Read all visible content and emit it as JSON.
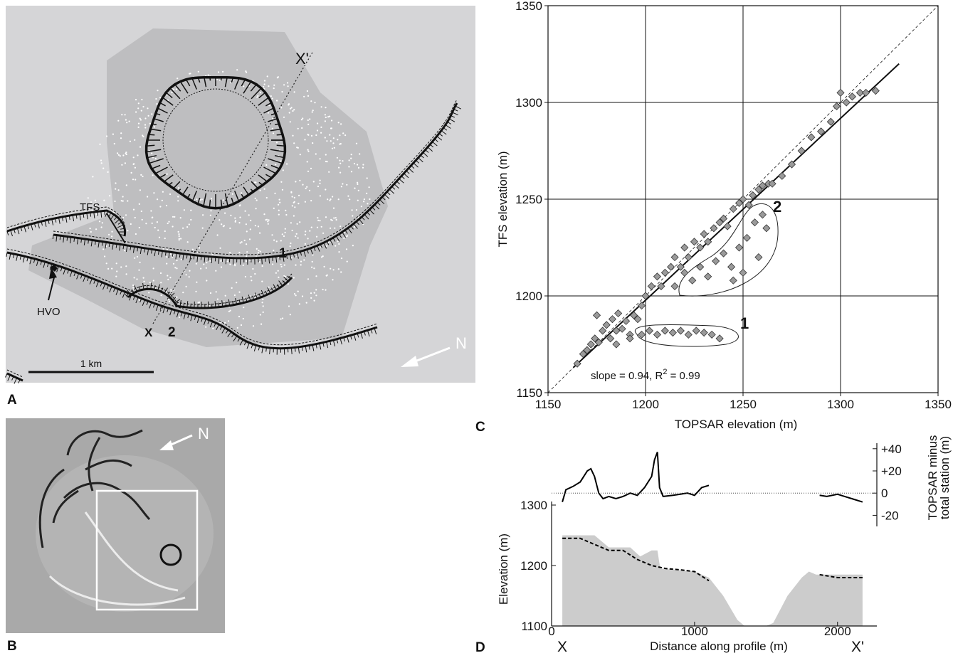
{
  "panels": {
    "a": "A",
    "b": "B",
    "c": "C",
    "d": "D"
  },
  "map": {
    "labels": {
      "x_prime": "X'",
      "x": "X",
      "tfs": "TFS",
      "hvo": "HVO",
      "fault_1": "1",
      "fault_2": "2"
    },
    "scale_bar": "1 km",
    "north": "N"
  },
  "photo": {
    "north": "N"
  },
  "chart_data": [
    {
      "type": "scatter",
      "xlabel": "TOPSAR elevation (m)",
      "ylabel": "TFS elevation (m)",
      "x": [
        1165,
        1168,
        1170,
        1172,
        1174,
        1175,
        1176,
        1178,
        1180,
        1182,
        1183,
        1185,
        1186,
        1188,
        1190,
        1192,
        1194,
        1196,
        1198,
        1200,
        1203,
        1206,
        1208,
        1210,
        1213,
        1215,
        1218,
        1220,
        1222,
        1225,
        1228,
        1230,
        1232,
        1235,
        1238,
        1240,
        1242,
        1245,
        1248,
        1250,
        1253,
        1255,
        1258,
        1260,
        1263,
        1265,
        1270,
        1275,
        1280,
        1285,
        1290,
        1295,
        1298,
        1300,
        1303,
        1306,
        1310,
        1313,
        1318,
        1185,
        1192,
        1198,
        1202,
        1206,
        1210,
        1214,
        1218,
        1222,
        1226,
        1230,
        1234,
        1238,
        1215,
        1220,
        1224,
        1228,
        1232,
        1236,
        1240,
        1244,
        1248,
        1252,
        1256,
        1260,
        1262,
        1258,
        1250,
        1245
      ],
      "y": [
        1165,
        1170,
        1172,
        1175,
        1178,
        1190,
        1176,
        1182,
        1185,
        1178,
        1188,
        1182,
        1191,
        1183,
        1187,
        1180,
        1190,
        1188,
        1195,
        1200,
        1205,
        1210,
        1205,
        1212,
        1215,
        1220,
        1215,
        1225,
        1220,
        1228,
        1225,
        1232,
        1228,
        1235,
        1238,
        1240,
        1236,
        1245,
        1248,
        1250,
        1247,
        1252,
        1255,
        1257,
        1258,
        1258,
        1262,
        1268,
        1275,
        1282,
        1285,
        1290,
        1298,
        1305,
        1300,
        1303,
        1305,
        1305,
        1306,
        1175,
        1178,
        1180,
        1182,
        1180,
        1182,
        1181,
        1182,
        1180,
        1182,
        1181,
        1180,
        1178,
        1205,
        1212,
        1208,
        1215,
        1210,
        1218,
        1222,
        1215,
        1225,
        1230,
        1238,
        1242,
        1235,
        1220,
        1212,
        1208
      ],
      "color": "#9a9a9a",
      "xlim": [
        1150,
        1350
      ],
      "ylim": [
        1150,
        1350
      ],
      "xticks": [
        1150,
        1200,
        1250,
        1300,
        1350
      ],
      "yticks": [
        1150,
        1200,
        1250,
        1300,
        1350
      ],
      "grid": true,
      "lines": [
        {
          "x": [
            1163,
            1330
          ],
          "y": [
            1163,
            1320
          ],
          "style": "solid"
        },
        {
          "x": [
            1150,
            1350
          ],
          "y": [
            1150,
            1350
          ],
          "style": "dashed"
        }
      ],
      "cluster_labels": [
        "1",
        "2"
      ],
      "fit_label": [
        "slope = 0.94, R",
        "2",
        " = 0.99"
      ]
    },
    {
      "type": "line",
      "xlabel": "Distance along profile (m)",
      "ylabel": "Elevation (m)",
      "y2label": [
        "TOPSAR minus",
        "total station (m)"
      ],
      "endpoints": [
        "X",
        "X'"
      ],
      "xlim": [
        0,
        2275
      ],
      "xticks": [
        0,
        1000,
        2000
      ],
      "ylim": [
        1100,
        1300
      ],
      "yticks": [
        1100,
        1200,
        1300
      ],
      "y2lim": [
        -30,
        45
      ],
      "y2ticks": [
        {
          "value": 40,
          "label": "+40"
        },
        {
          "value": 20,
          "label": "+20"
        },
        0,
        -20
      ],
      "series": [
        {
          "style": "area",
          "color": "#cccccc",
          "x": [
            75,
            300,
            400,
            550,
            620,
            700,
            740,
            760,
            1000,
            1100,
            1200,
            1300,
            1350,
            1500,
            1550,
            1650,
            1750,
            1800,
            1850,
            2175
          ],
          "values": [
            1250,
            1250,
            1230,
            1230,
            1215,
            1225,
            1225,
            1195,
            1190,
            1180,
            1150,
            1110,
            1100,
            1100,
            1105,
            1150,
            1180,
            1190,
            1185,
            1185
          ]
        },
        {
          "style": "dashed",
          "color": "#000000",
          "x": [
            75,
            200,
            300,
            400,
            500,
            600,
            700,
            800,
            900,
            1000,
            1100,
            1400,
            1875,
            2000,
            2175
          ],
          "values": [
            1245,
            1245,
            1235,
            1225,
            1225,
            1210,
            1200,
            1195,
            1193,
            1190,
            1175,
            null,
            1185,
            1180,
            1180
          ]
        },
        {
          "style": "solid",
          "color": "#000000",
          "axis": "y2",
          "x": [
            75,
            100,
            150,
            200,
            250,
            275,
            300,
            330,
            360,
            400,
            450,
            500,
            550,
            600,
            650,
            700,
            720,
            740,
            755,
            780,
            850,
            900,
            950,
            1000,
            1050,
            1100,
            1400,
            1875,
            1925,
            2000,
            2050,
            2100,
            2175
          ],
          "values": [
            -8,
            3,
            6,
            10,
            20,
            22,
            15,
            0,
            -5,
            -3,
            -5,
            -3,
            0,
            -2,
            5,
            15,
            30,
            37,
            5,
            -3,
            -2,
            -1,
            0,
            -2,
            5,
            7,
            null,
            -2,
            -3,
            -1,
            -3,
            -5,
            -8
          ]
        }
      ]
    }
  ]
}
